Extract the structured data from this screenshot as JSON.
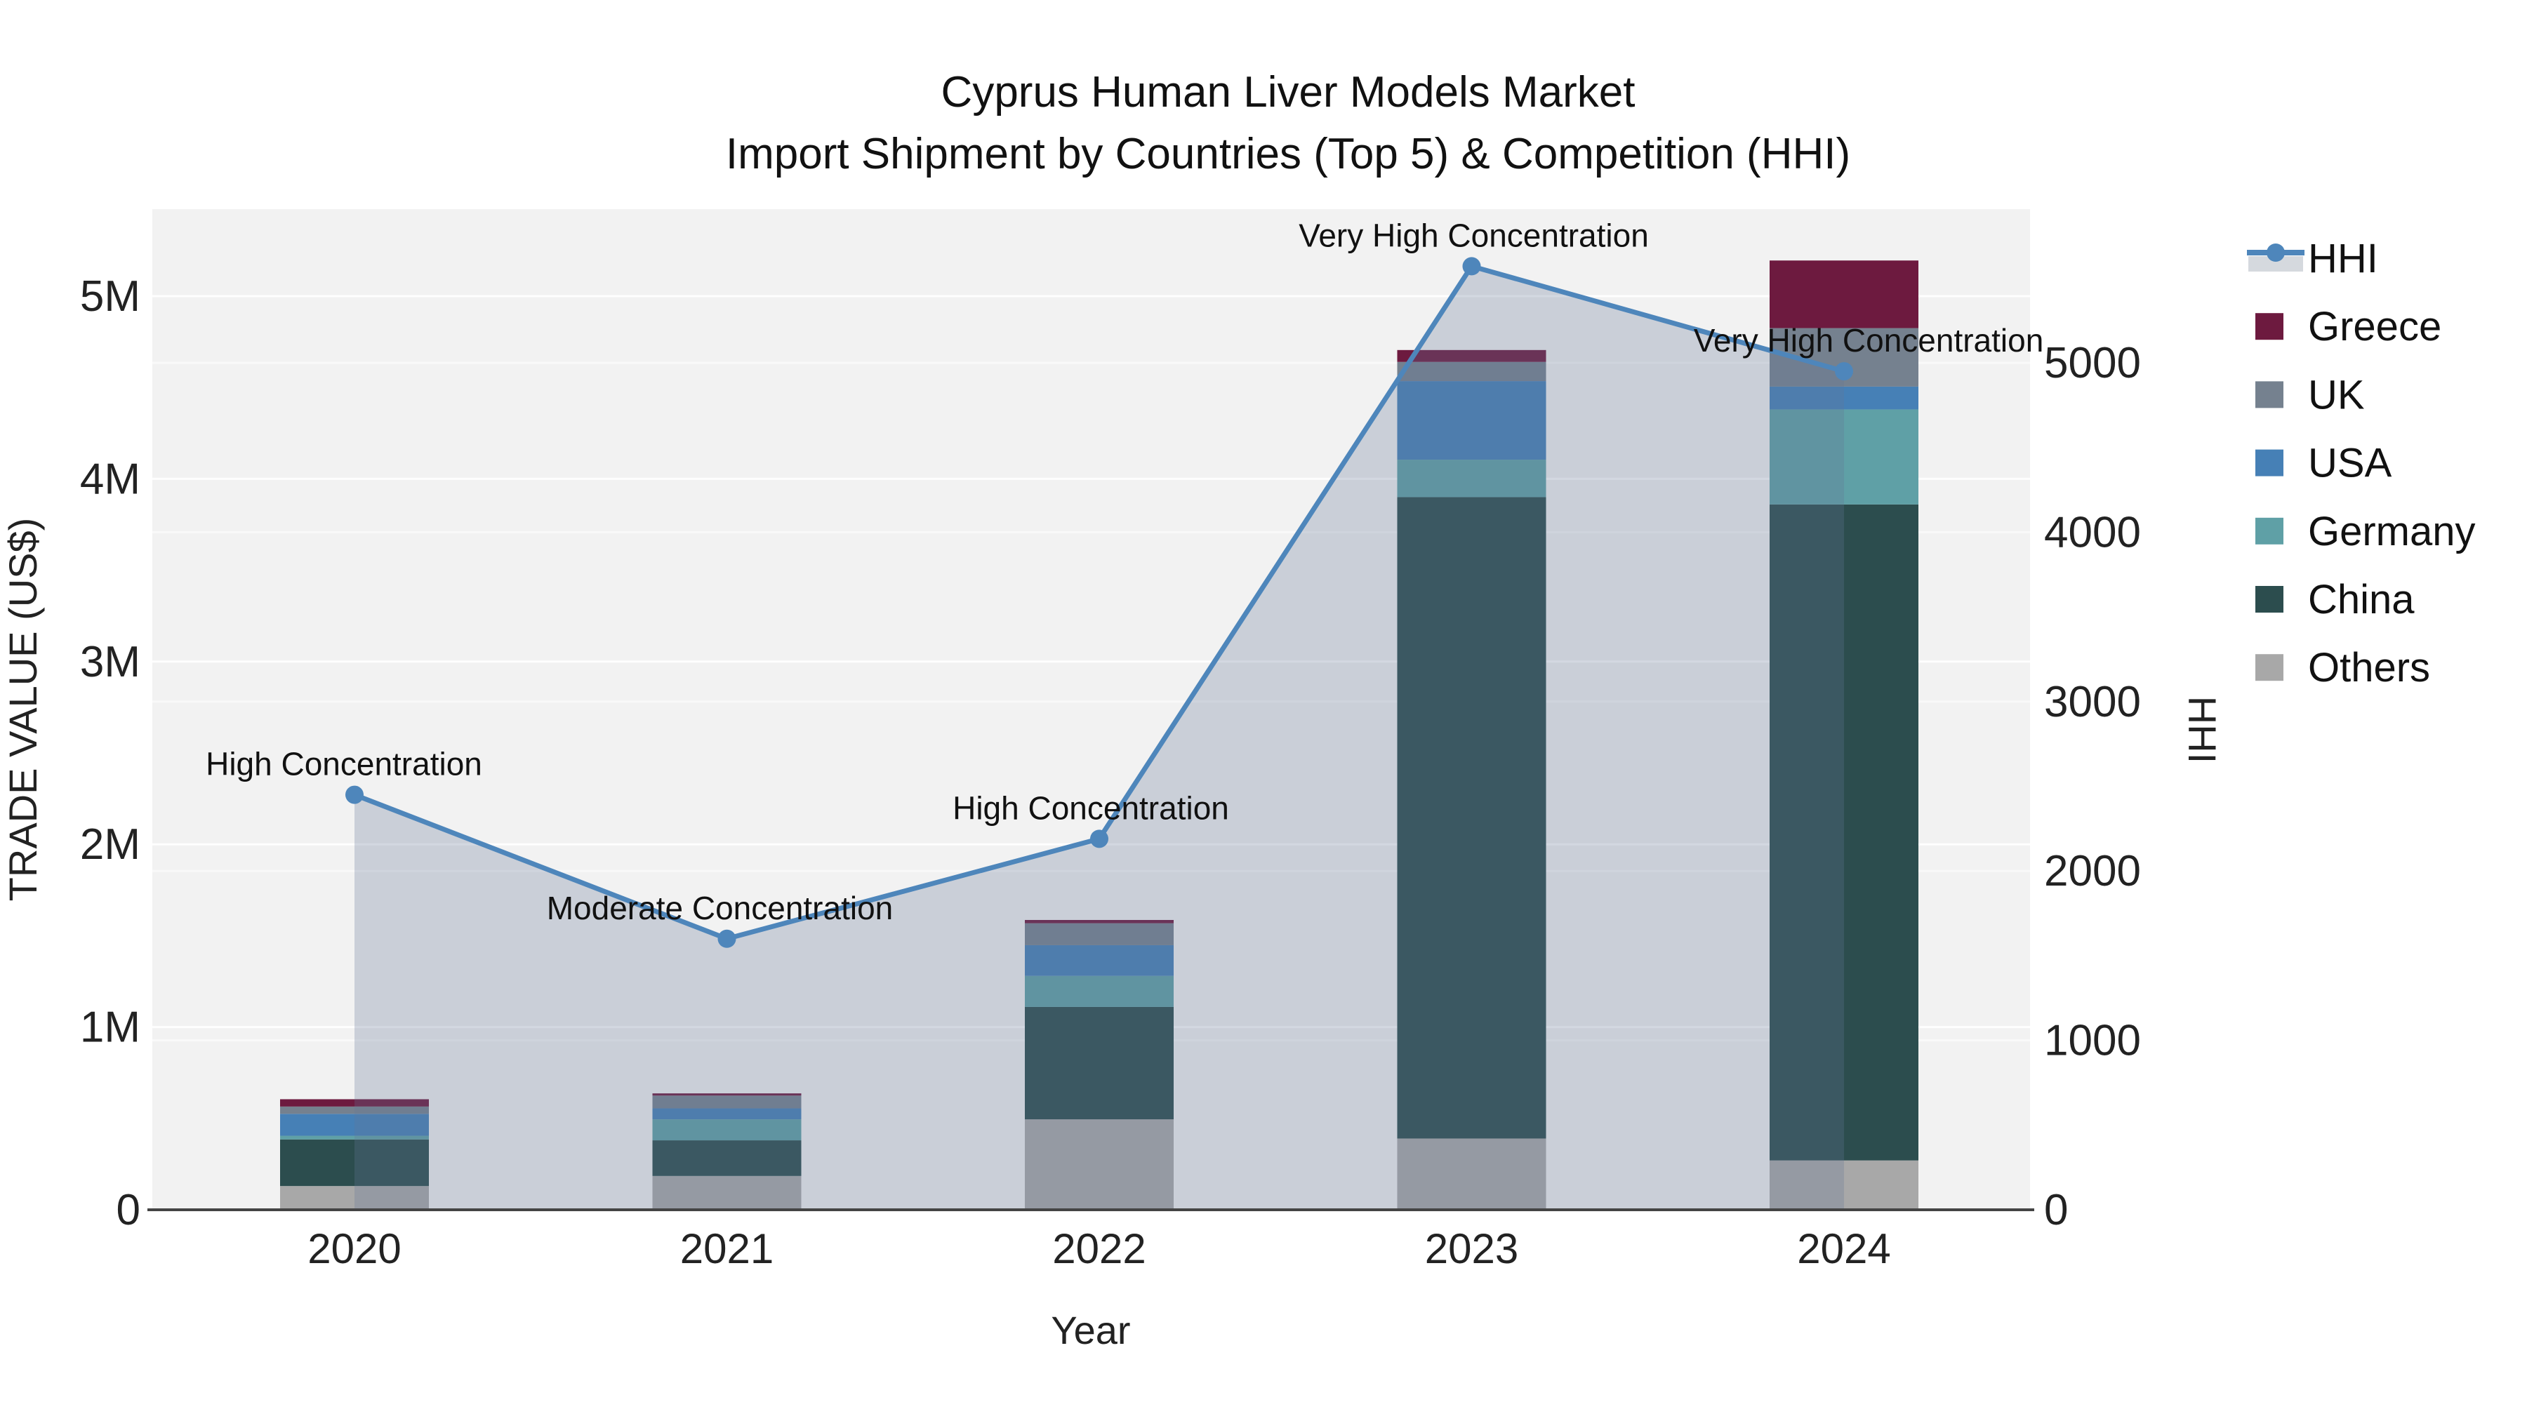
{
  "title": {
    "line1": "Cyprus Human Liver Models Market",
    "line2": "Import Shipment by Countries (Top 5) & Competition (HHI)"
  },
  "axes": {
    "x": {
      "title": "Year",
      "ticks": [
        "2020",
        "2021",
        "2022",
        "2023",
        "2024"
      ]
    },
    "y_left": {
      "title": "TRADE VALUE (US$)",
      "ticks": [
        "0",
        "1M",
        "2M",
        "3M",
        "4M",
        "5M"
      ]
    },
    "y_right": {
      "title": "HHI",
      "ticks": [
        "0",
        "1000",
        "2000",
        "3000",
        "4000",
        "5000"
      ]
    }
  },
  "legend": {
    "items": [
      {
        "label": "HHI",
        "type": "line"
      },
      {
        "label": "Greece",
        "type": "swatch"
      },
      {
        "label": "UK",
        "type": "swatch"
      },
      {
        "label": "USA",
        "type": "swatch"
      },
      {
        "label": "Germany",
        "type": "swatch"
      },
      {
        "label": "China",
        "type": "swatch"
      },
      {
        "label": "Others",
        "type": "swatch"
      }
    ]
  },
  "colors": {
    "Greece": "#6d1a3f",
    "UK": "#75818f",
    "USA": "#4680b6",
    "Germany": "#5fa0a6",
    "China": "#2c4d4e",
    "Others": "#a8a8a8",
    "hhi_line": "#4e86bb",
    "hhi_fill": "rgba(100,120,150,0.28)",
    "legend_fill_swatch": "#d5d9de",
    "plot_bg": "#f2f2f2",
    "axis_line": "#444444"
  },
  "chart_data": {
    "type": "combo: stacked bar (trade value, left axis) + line with area fill (HHI, right axis)",
    "categories": [
      "2020",
      "2021",
      "2022",
      "2023",
      "2024"
    ],
    "bar_stack_order_bottom_to_top": [
      "Others",
      "China",
      "Germany",
      "USA",
      "UK",
      "Greece"
    ],
    "series": [
      {
        "name": "Others",
        "axis": "left",
        "values": [
          130000,
          185000,
          495000,
          390000,
          270000
        ]
      },
      {
        "name": "China",
        "axis": "left",
        "values": [
          255000,
          195000,
          615000,
          3510000,
          3590000
        ]
      },
      {
        "name": "Germany",
        "axis": "left",
        "values": [
          20000,
          115000,
          170000,
          205000,
          520000
        ]
      },
      {
        "name": "USA",
        "axis": "left",
        "values": [
          120000,
          60000,
          168000,
          430000,
          125000
        ]
      },
      {
        "name": "UK",
        "axis": "left",
        "values": [
          40000,
          70000,
          120000,
          105000,
          320000
        ]
      },
      {
        "name": "Greece",
        "axis": "left",
        "values": [
          40000,
          12000,
          18000,
          65000,
          370000
        ]
      }
    ],
    "line_series": {
      "name": "HHI",
      "axis": "right",
      "values": [
        2450,
        1600,
        2190,
        5570,
        4950
      ]
    },
    "annotations": [
      "High Concentration",
      "Moderate Concentration",
      "High Concentration",
      "Very High Concentration",
      "Very High Concentration"
    ],
    "totals_by_year": [
      605000,
      637000,
      1586000,
      4705000,
      5195000
    ],
    "xlabel": "Year",
    "ylabel_left": "TRADE VALUE (US$)",
    "ylabel_right": "HHI",
    "ylim_left": [
      0,
      5480000
    ],
    "ylim_right": [
      0,
      5910
    ],
    "grid": true,
    "legend_position": "right"
  }
}
